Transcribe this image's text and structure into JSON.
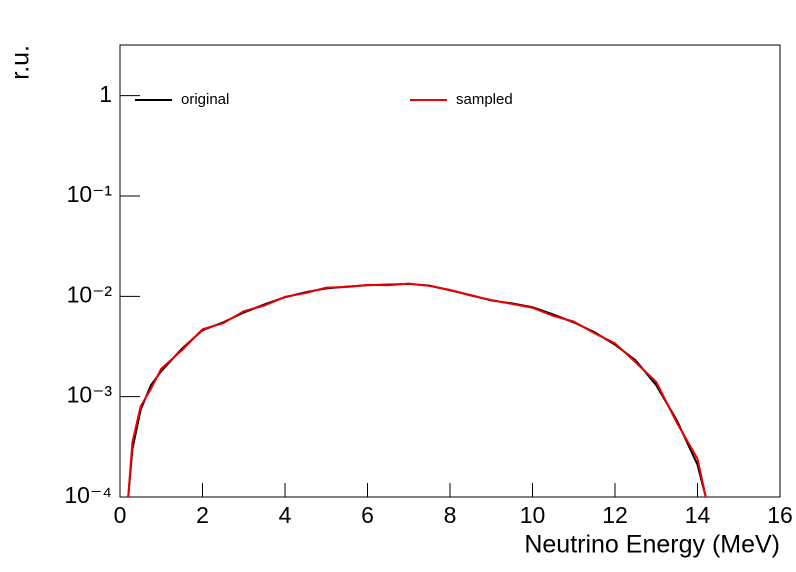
{
  "chart_data": {
    "type": "line",
    "x_label": "Neutrino Energy (MeV)",
    "y_label": "r.u.",
    "log_y": true,
    "x": [
      0.2,
      0.3,
      0.5,
      0.75,
      1,
      1.5,
      2,
      2.5,
      3,
      3.5,
      4,
      4.5,
      5,
      5.5,
      6,
      6.5,
      7,
      7.5,
      8,
      8.5,
      9,
      9.5,
      10,
      10.5,
      11,
      11.5,
      12,
      12.5,
      13,
      13.5,
      14,
      14.2
    ],
    "series": [
      {
        "name": "original",
        "color": "#000000",
        "values": [
          0.0001,
          0.0003,
          0.00074,
          0.0013,
          0.0018,
          0.003,
          0.0046,
          0.0055,
          0.0069,
          0.0083,
          0.0098,
          0.011,
          0.012,
          0.0125,
          0.0129,
          0.0131,
          0.0133,
          0.0128,
          0.0115,
          0.0103,
          0.0091,
          0.0085,
          0.0078,
          0.0066,
          0.0055,
          0.0044,
          0.0033,
          0.0023,
          0.0013,
          0.00058,
          0.00021,
          0.0001
        ]
      },
      {
        "name": "sampled",
        "color": "#ee0000",
        "values": [
          0.0001,
          0.00035,
          0.0008,
          0.0012,
          0.0019,
          0.0029,
          0.0047,
          0.0054,
          0.0071,
          0.0081,
          0.0099,
          0.0108,
          0.0122,
          0.0124,
          0.013,
          0.0129,
          0.0134,
          0.0127,
          0.0116,
          0.0102,
          0.0092,
          0.0084,
          0.0077,
          0.0064,
          0.0056,
          0.0043,
          0.0034,
          0.0022,
          0.0014,
          0.00055,
          0.00024,
          0.0001
        ]
      }
    ],
    "xlim": [
      0,
      16
    ],
    "xticks": [
      0,
      2,
      4,
      6,
      8,
      10,
      12,
      14,
      16
    ],
    "ylim": [
      0.0001,
      3.2
    ],
    "yticks": [
      {
        "value": 0.0001,
        "label": "10⁻⁴"
      },
      {
        "value": 0.001,
        "label": "10⁻³"
      },
      {
        "value": 0.01,
        "label": "10⁻²"
      },
      {
        "value": 0.1,
        "label": "10⁻¹"
      },
      1
    ],
    "legend": "top"
  }
}
